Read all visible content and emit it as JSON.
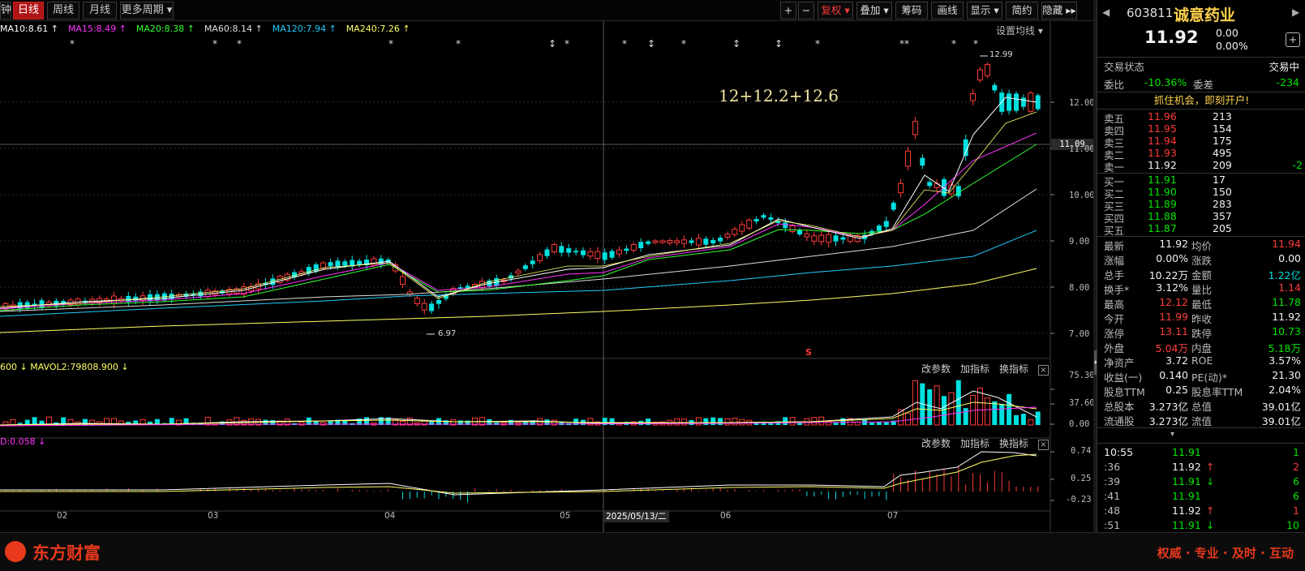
{
  "toolbar": {
    "left_stub": "钟",
    "periods": [
      "日线",
      "周线",
      "月线",
      "更多周期 ▾"
    ],
    "active_period": "日线",
    "zoom_in": "+",
    "zoom_out": "−",
    "tools": [
      "复权 ▾",
      "叠加 ▾",
      "筹码",
      "画线",
      "显示 ▾",
      "简约",
      "隐藏 ▸▸"
    ],
    "arrow_left": "◀",
    "arrow_right": "▶"
  },
  "ma_legend": [
    {
      "label": "MA10:8.61",
      "color": "#ffffff"
    },
    {
      "label": "MA15:8.49",
      "color": "#ff33ff"
    },
    {
      "label": "MA20:8.38",
      "color": "#33ff33"
    },
    {
      "label": "MA60:8.14",
      "color": "#dddddd"
    },
    {
      "label": "MA120:7.94",
      "color": "#22ccff"
    },
    {
      "label": "MA240:7.26",
      "color": "#ffff66"
    }
  ],
  "settings_link": "设置均线 ▾",
  "annotation_text": "12+12.2+12.6",
  "high_label": "12.99",
  "low_label": "6.97",
  "crosshair_price": "11.09",
  "dividend_marker": "S",
  "price_axis": [
    "12.00",
    "11.00",
    "10.00",
    "9.00",
    "8.00",
    "7.00"
  ],
  "volume": {
    "legend": "600 ↓  MAVOL2:79808.900 ↓",
    "axis": [
      "75.30",
      "37.60",
      "0.00"
    ],
    "buttons": [
      "改参数",
      "加指标",
      "换指标"
    ]
  },
  "macd": {
    "legend": "D:0.058 ↓",
    "axis": [
      "0.74",
      "0.25",
      "-0.23"
    ],
    "buttons": [
      "改参数",
      "加指标",
      "换指标"
    ]
  },
  "close_x": "×",
  "date_axis": [
    "02",
    "03",
    "04",
    "05",
    "06",
    "07"
  ],
  "crosshair_date": "2025/05/13/二",
  "stock": {
    "code": "603811",
    "name": "诚意药业",
    "price": "11.92",
    "change": "0.00",
    "change_pct": "0.00%"
  },
  "status": {
    "label": "交易状态",
    "value": "交易中"
  },
  "weibi": {
    "label": "委比",
    "value": "-10.36%",
    "diff_label": "委差",
    "diff": "-234"
  },
  "promo": "抓住机会，即刻开户!",
  "asks": [
    {
      "label": "卖五",
      "price": "11.96",
      "vol": "213",
      "chg": ""
    },
    {
      "label": "卖四",
      "price": "11.95",
      "vol": "154",
      "chg": ""
    },
    {
      "label": "卖三",
      "price": "11.94",
      "vol": "175",
      "chg": ""
    },
    {
      "label": "卖二",
      "price": "11.93",
      "vol": "495",
      "chg": ""
    },
    {
      "label": "卖一",
      "price": "11.92",
      "vol": "209",
      "chg": "-2"
    }
  ],
  "bids": [
    {
      "label": "买一",
      "price": "11.91",
      "vol": "17"
    },
    {
      "label": "买二",
      "price": "11.90",
      "vol": "150"
    },
    {
      "label": "买三",
      "price": "11.89",
      "vol": "283"
    },
    {
      "label": "买四",
      "price": "11.88",
      "vol": "357"
    },
    {
      "label": "买五",
      "price": "11.87",
      "vol": "205"
    }
  ],
  "quotes": [
    {
      "l1": "最新",
      "v1": "11.92",
      "c1": "white",
      "l2": "均价",
      "v2": "11.94",
      "c2": "red"
    },
    {
      "l1": "涨幅",
      "v1": "0.00%",
      "c1": "white",
      "l2": "涨跌",
      "v2": "0.00",
      "c2": "white"
    },
    {
      "l1": "总手",
      "v1": "10.22万",
      "c1": "white",
      "l2": "金额",
      "v2": "1.22亿",
      "c2": "cyan"
    },
    {
      "l1": "换手*",
      "v1": "3.12%",
      "c1": "white",
      "l2": "量比",
      "v2": "1.14",
      "c2": "red"
    },
    {
      "l1": "最高",
      "v1": "12.12",
      "c1": "red",
      "l2": "最低",
      "v2": "11.78",
      "c2": "green"
    },
    {
      "l1": "今开",
      "v1": "11.99",
      "c1": "red",
      "l2": "昨收",
      "v2": "11.92",
      "c2": "white"
    },
    {
      "l1": "涨停",
      "v1": "13.11",
      "c1": "red",
      "l2": "跌停",
      "v2": "10.73",
      "c2": "green"
    },
    {
      "l1": "外盘",
      "v1": "5.04万",
      "c1": "red",
      "l2": "内盘",
      "v2": "5.18万",
      "c2": "green"
    },
    {
      "l1": "净资产",
      "v1": "3.72",
      "c1": "white",
      "l2": "ROE",
      "v2": "3.57%",
      "c2": "white"
    },
    {
      "l1": "收益(一)",
      "v1": "0.140",
      "c1": "white",
      "l2": "PE(动)*",
      "v2": "21.30",
      "c2": "white"
    },
    {
      "l1": "股息TTM",
      "v1": "0.25",
      "c1": "white",
      "l2": "股息率TTM",
      "v2": "2.04%",
      "c2": "white"
    },
    {
      "l1": "总股本",
      "v1": "3.273亿",
      "c1": "white",
      "l2": "总值",
      "v2": "39.01亿",
      "c2": "white"
    },
    {
      "l1": "流通股",
      "v1": "3.273亿",
      "c1": "white",
      "l2": "流值",
      "v2": "39.01亿",
      "c2": "white"
    }
  ],
  "expand_arrow": "▾",
  "ticks": [
    {
      "time": "10:55",
      "price": "11.91",
      "color": "green",
      "arrow": "",
      "vol": "1"
    },
    {
      "time": ":36",
      "price": "11.92",
      "color": "white",
      "arrow": "↑",
      "vol": "2"
    },
    {
      "time": ":39",
      "price": "11.91",
      "color": "green",
      "arrow": "↓",
      "vol": "6"
    },
    {
      "time": ":41",
      "price": "11.91",
      "color": "green",
      "arrow": "",
      "vol": "6"
    },
    {
      "time": ":48",
      "price": "11.92",
      "color": "white",
      "arrow": "↑",
      "vol": "1"
    },
    {
      "time": ":51",
      "price": "11.91",
      "color": "green",
      "arrow": "↓",
      "vol": "10"
    }
  ],
  "brand": {
    "name": "东方财富",
    "slogan": "权威 · 专业 · 及时 · 互动"
  },
  "colors": {
    "up": "#ff3b3b",
    "down": "#00e0e0",
    "bg": "#000000",
    "brand": "#e8391d"
  }
}
